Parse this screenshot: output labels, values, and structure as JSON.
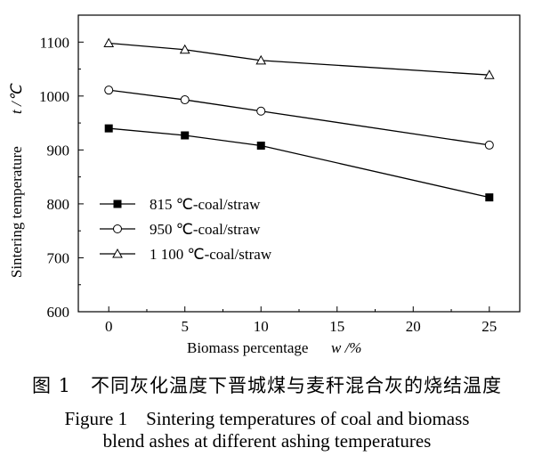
{
  "chart_data": {
    "type": "line",
    "x": [
      0,
      5,
      10,
      25
    ],
    "series": [
      {
        "name": "815 ℃-coal/straw",
        "marker": "filled-square",
        "values": [
          940,
          927,
          908,
          812
        ]
      },
      {
        "name": "950 ℃-coal/straw",
        "marker": "open-circle",
        "values": [
          1011,
          993,
          972,
          909
        ]
      },
      {
        "name": "1 100 ℃-coal/straw",
        "marker": "open-triangle",
        "values": [
          1098,
          1086,
          1066,
          1039
        ]
      }
    ],
    "xlabel": "Biomass percentage",
    "xlabel_symbol": "w /%",
    "ylabel": "Sintering temperature",
    "ylabel_symbol": "t /℃",
    "xlim": [
      -2,
      27
    ],
    "ylim": [
      600,
      1150
    ],
    "xticks": [
      0,
      5,
      10,
      15,
      20,
      25
    ],
    "yticks": [
      600,
      700,
      800,
      900,
      1000,
      1100
    ],
    "grid": false,
    "legend_position": "bottom-left",
    "line_color": "#000000"
  },
  "caption": {
    "cn": "图 1　不同灰化温度下晋城煤与麦秆混合灰的烧结温度",
    "en_line1": "Figure 1　Sintering temperatures of coal and biomass",
    "en_line2": "blend ashes at different ashing temperatures"
  }
}
